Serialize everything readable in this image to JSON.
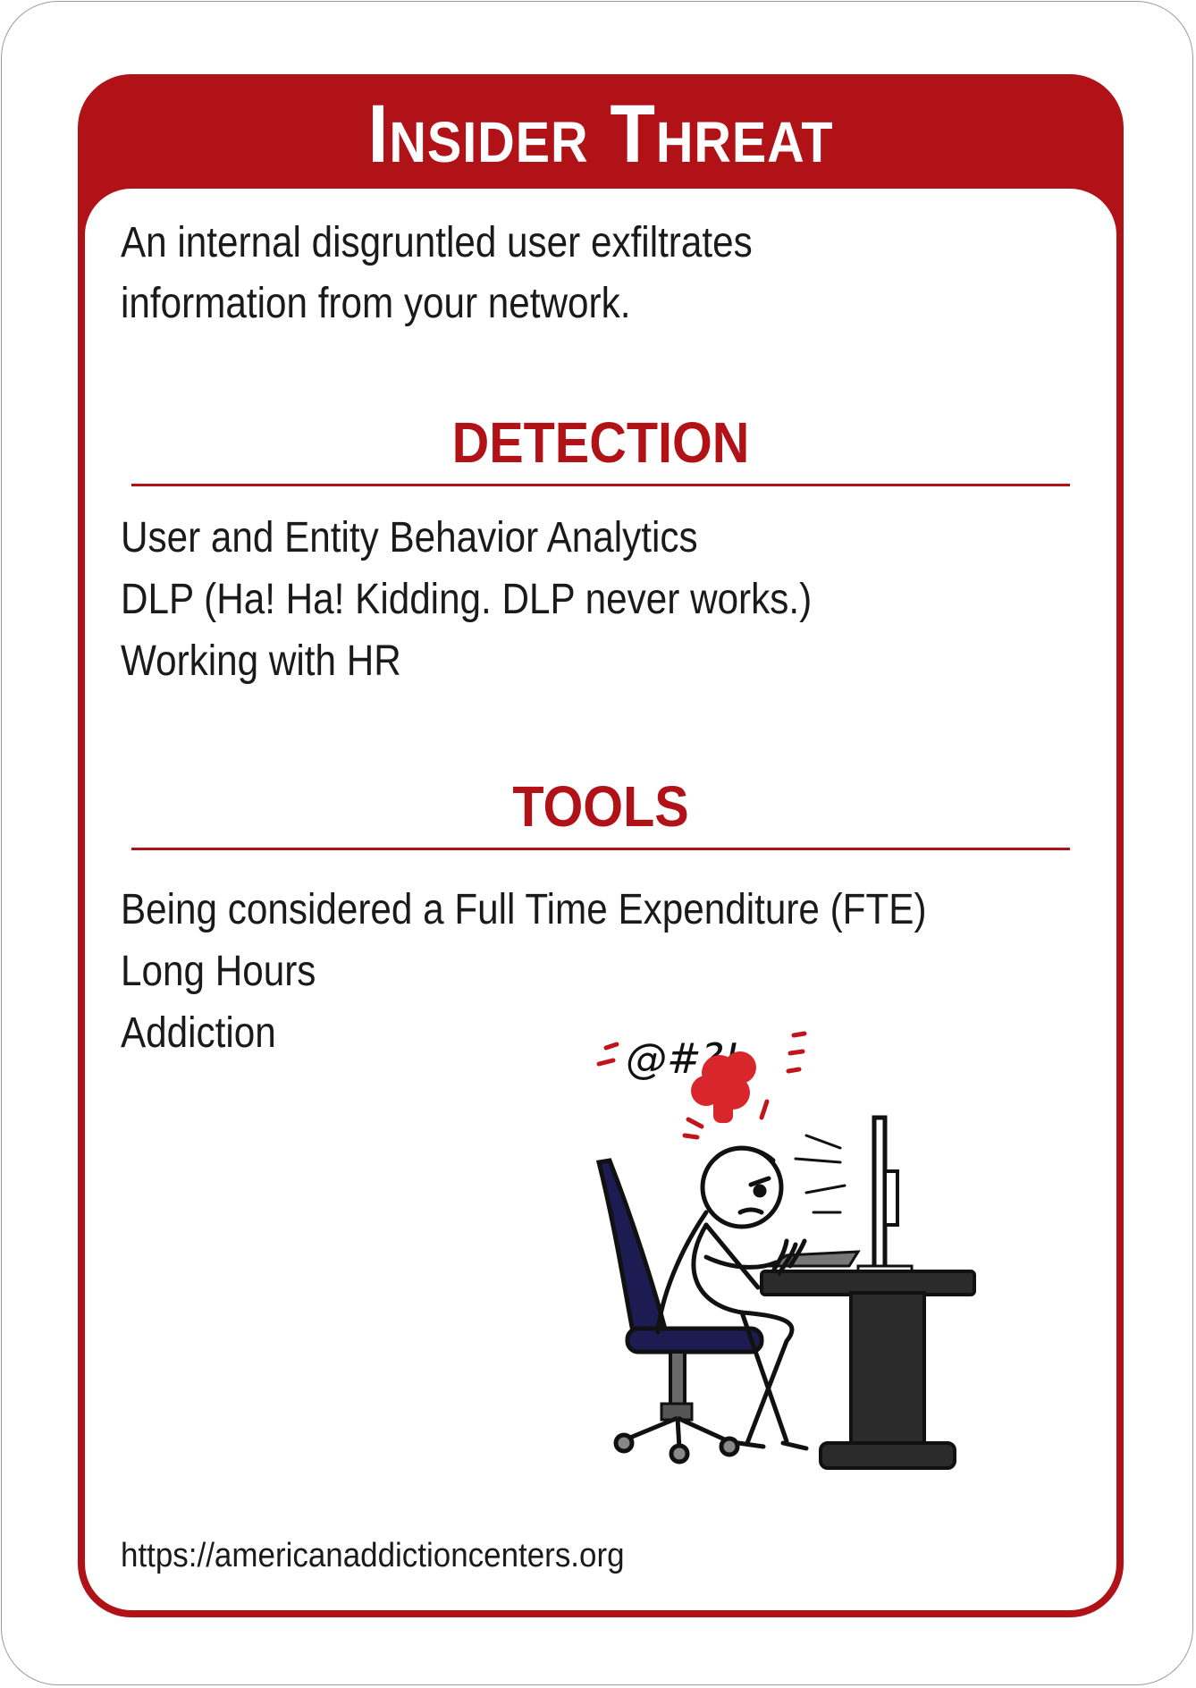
{
  "card": {
    "title": "Insider Threat",
    "description_line1": "An internal disgruntled user exfiltrates",
    "description_line2": "information from your network.",
    "detection": {
      "heading": "DETECTION",
      "items": [
        "User and Entity Behavior Analytics",
        "DLP (Ha! Ha! Kidding. DLP never works.)",
        "Working with HR"
      ]
    },
    "tools": {
      "heading": "TOOLS",
      "items": [
        "Being considered a Full Time Expenditure (FTE)",
        "Long Hours",
        "Addiction"
      ]
    },
    "illustration": {
      "name": "angry-office-worker-illustration",
      "grawlix": "@#?!"
    },
    "source_url": "https://americanaddictioncenters.org"
  },
  "colors": {
    "accent_red": "#b01218",
    "text": "#1a1a1a",
    "chair_navy": "#1c1c52",
    "desk_dark": "#2b2b2b"
  }
}
